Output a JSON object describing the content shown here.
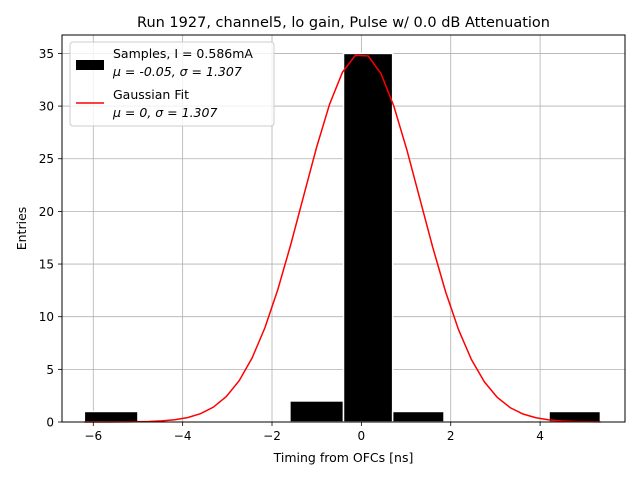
{
  "chart_data": {
    "type": "bar",
    "title": "Run 1927, channel5, lo gain, Pulse w/ 0.0 dB Attenuation",
    "xlabel": "Timing from OFCs [ns]",
    "ylabel": "Entries",
    "xlim": [
      -6.7,
      5.9
    ],
    "ylim": [
      0,
      36.75
    ],
    "xticks": [
      -6,
      -4,
      -2,
      0,
      2,
      4
    ],
    "yticks": [
      0,
      5,
      10,
      15,
      20,
      25,
      30,
      35
    ],
    "grid": true,
    "legend_position": "upper-left",
    "histogram": {
      "name": "Samples, I = 0.586mA",
      "stats": "μ = -0.05, σ = 1.307",
      "color": "#000000",
      "edge_color": "#ffffff",
      "bins": [
        {
          "x0": -6.2,
          "x1": -5.0,
          "count": 1
        },
        {
          "x0": -1.6,
          "x1": -0.4,
          "count": 2
        },
        {
          "x0": -0.4,
          "x1": 0.7,
          "count": 35
        },
        {
          "x0": 0.7,
          "x1": 1.85,
          "count": 1
        },
        {
          "x0": 4.2,
          "x1": 5.35,
          "count": 1
        }
      ]
    },
    "fit": {
      "name": "Gaussian Fit",
      "stats": "μ = 0, σ = 1.307",
      "color": "#ff0000",
      "mu": 0,
      "sigma": 1.307,
      "amplitude": 35,
      "x_range": [
        -6.2,
        5.35
      ],
      "points": 41
    }
  }
}
